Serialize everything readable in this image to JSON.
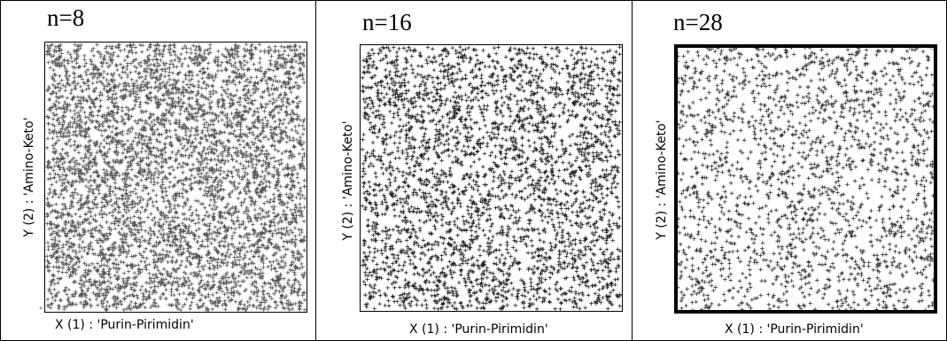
{
  "chart_data": [
    {
      "type": "scatter",
      "title": "n=8",
      "xlabel": "X (1) : 'Purin-Pirimidin'",
      "ylabel": "Y (2) : 'Amino-Keto'",
      "marker": "+",
      "point_density": "very high",
      "color": "#555555",
      "border": "thin"
    },
    {
      "type": "scatter",
      "title": "n=16",
      "xlabel": "X (1) : 'Purin-Pirimidin'",
      "ylabel": "Y (2) : 'Amino-Keto'",
      "marker": "+",
      "point_density": "high",
      "color": "#222222",
      "border": "thin"
    },
    {
      "type": "scatter",
      "title": "n=28",
      "xlabel": "X (1) : 'Purin-Pirimidin'",
      "ylabel": "Y (2) : 'Amino-Keto'",
      "marker": "+",
      "point_density": "medium",
      "color": "#333333",
      "border": "thick"
    }
  ]
}
